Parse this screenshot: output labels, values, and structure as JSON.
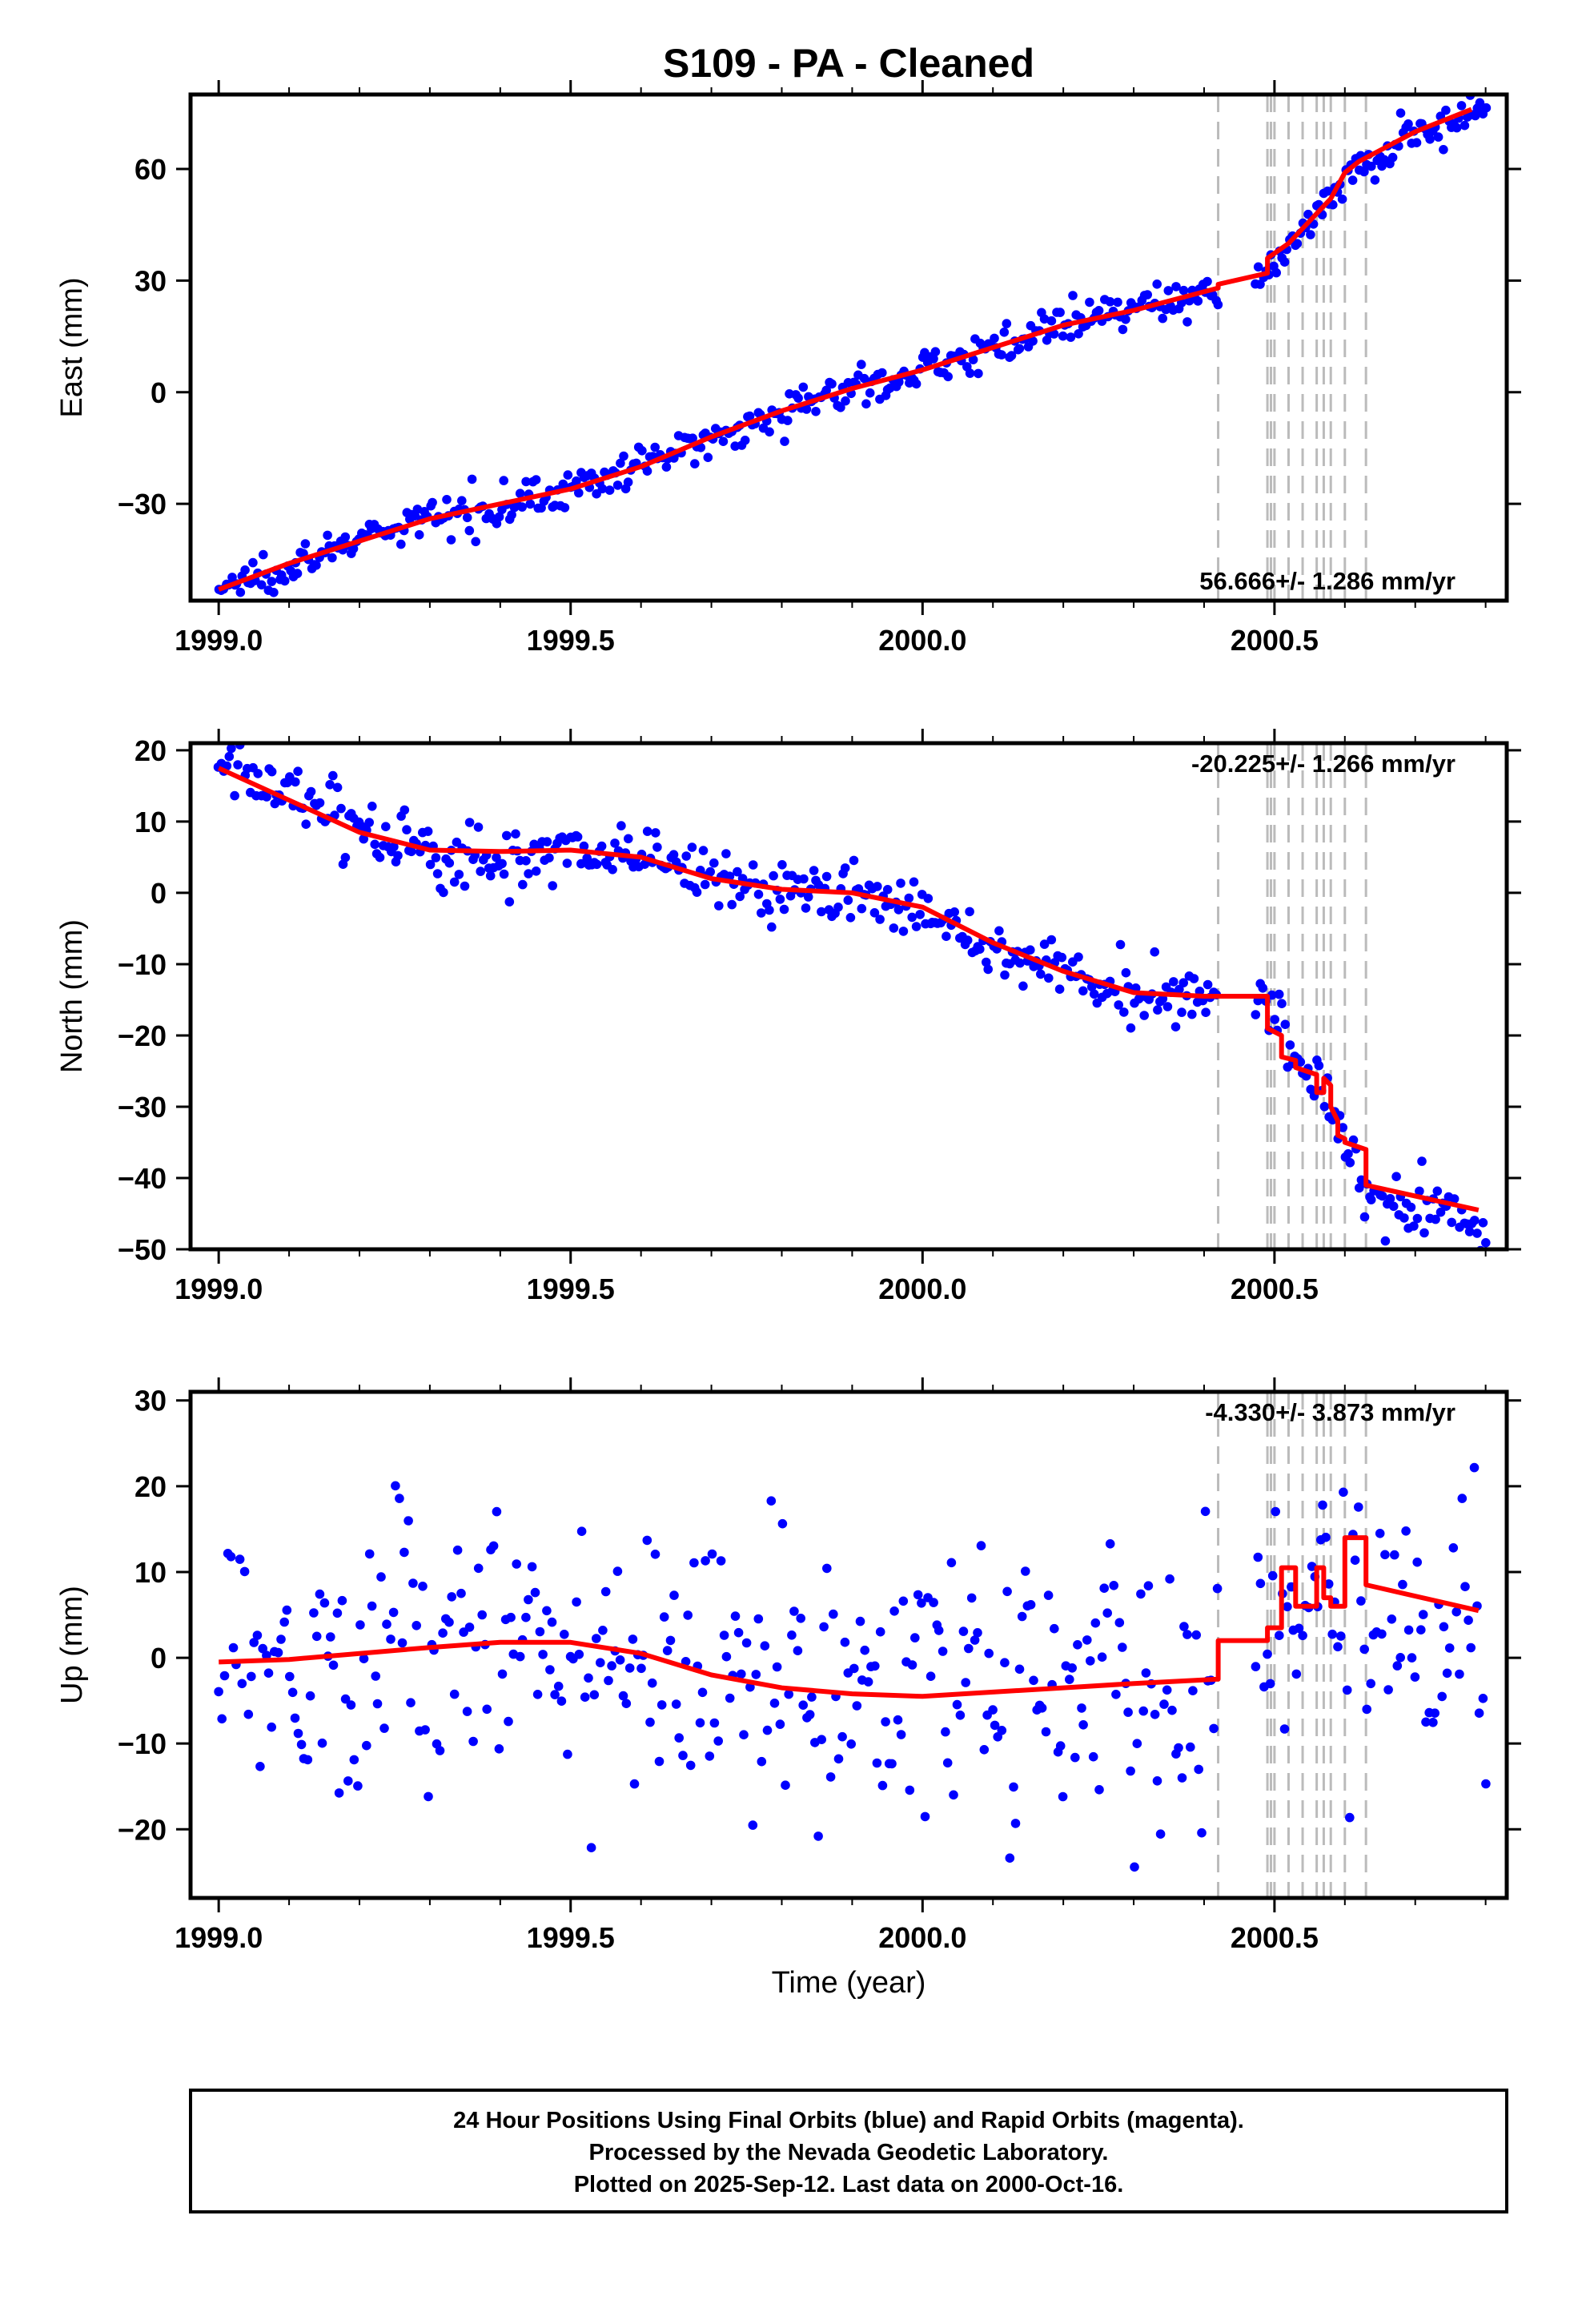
{
  "title": "S109  - PA - Cleaned",
  "x_axis_label": "Time (year)",
  "footer_lines": [
    "24 Hour Positions Using Final Orbits (blue) and Rapid Orbits (magenta).",
    "Processed by the Nevada Geodetic Laboratory.",
    "Plotted on 2025-Sep-12. Last data on 2000-Oct-16."
  ],
  "colors": {
    "final_orbits": "#0000ff",
    "model": "#ff0000",
    "offset_lines": "#bbbbbb"
  },
  "chart_data": [
    {
      "type": "scatter",
      "panel": "east",
      "ylabel": "East (mm)",
      "xlim": [
        1998.96,
        2000.83
      ],
      "ylim": [
        -56,
        80
      ],
      "xticks": [
        1999.0,
        1999.5,
        2000.0,
        2000.5
      ],
      "xtick_labels": [
        "1999.0",
        "1999.5",
        "2000.0",
        "2000.5"
      ],
      "yticks": [
        -30,
        0,
        30,
        60
      ],
      "ytick_labels": [
        "−30",
        "0",
        "30",
        "60"
      ],
      "rate_label": "56.666+/- 1.286 mm/yr",
      "rate_position": "bottom-right",
      "offset_epochs": [
        2000.42,
        2000.49,
        2000.495,
        2000.5,
        2000.52,
        2000.54,
        2000.56,
        2000.57,
        2000.58,
        2000.6,
        2000.63
      ],
      "model": {
        "x": [
          1999.0,
          1999.1,
          1999.2,
          1999.3,
          1999.4,
          1999.5,
          1999.6,
          1999.7,
          1999.8,
          1999.9,
          2000.0,
          2000.1,
          2000.2,
          2000.3,
          2000.42,
          2000.42,
          2000.49,
          2000.49,
          2000.52,
          2000.55,
          2000.58,
          2000.6,
          2000.62,
          2000.7,
          2000.78
        ],
        "y": [
          -53,
          -46,
          -40,
          -34,
          -30,
          -26,
          -20,
          -12,
          -5,
          1,
          6,
          12,
          18,
          22,
          28,
          29,
          32,
          36,
          40,
          46,
          52,
          59,
          62,
          70,
          76
        ]
      },
      "series": [
        {
          "name": "Final Orbits",
          "anchors_x": [
            1999.0,
            1999.1,
            1999.2,
            1999.3,
            1999.4,
            1999.5,
            1999.6,
            1999.7,
            1999.8,
            1999.9,
            2000.0,
            2000.1,
            2000.2,
            2000.3,
            2000.4,
            2000.5,
            2000.55,
            2000.6,
            2000.65,
            2000.7,
            2000.8
          ],
          "anchors_y": [
            -53,
            -46,
            -40,
            -34,
            -30,
            -26,
            -20,
            -12,
            -5,
            1,
            6,
            12,
            18,
            22,
            27,
            35,
            45,
            58,
            64,
            70,
            76
          ],
          "noise": 2.5,
          "x_range": [
            1999.0,
            2000.8
          ],
          "gaps": [
            [
              2000.42,
              2000.47
            ]
          ],
          "count": 480
        }
      ]
    },
    {
      "type": "scatter",
      "panel": "north",
      "ylabel": "North (mm)",
      "xlim": [
        1998.96,
        2000.83
      ],
      "ylim": [
        -50,
        21
      ],
      "xticks": [
        1999.0,
        1999.5,
        2000.0,
        2000.5
      ],
      "xtick_labels": [
        "1999.0",
        "1999.5",
        "2000.0",
        "2000.5"
      ],
      "yticks": [
        -50,
        -40,
        -30,
        -20,
        -10,
        0,
        10,
        20
      ],
      "ytick_labels": [
        "−50",
        "−40",
        "−30",
        "−20",
        "−10",
        "0",
        "10",
        "20"
      ],
      "rate_label": "-20.225+/- 1.266 mm/yr",
      "rate_position": "top-right",
      "offset_epochs": [
        2000.42,
        2000.49,
        2000.495,
        2000.5,
        2000.52,
        2000.54,
        2000.56,
        2000.57,
        2000.58,
        2000.6,
        2000.63
      ],
      "model": {
        "x": [
          1999.0,
          1999.1,
          1999.2,
          1999.3,
          1999.4,
          1999.5,
          1999.6,
          1999.7,
          1999.8,
          1999.9,
          2000.0,
          2000.1,
          2000.2,
          2000.3,
          2000.4,
          2000.49,
          2000.49,
          2000.51,
          2000.51,
          2000.53,
          2000.53,
          2000.56,
          2000.56,
          2000.57,
          2000.57,
          2000.58,
          2000.58,
          2000.59,
          2000.59,
          2000.6,
          2000.6,
          2000.63,
          2000.63,
          2000.79
        ],
        "y": [
          17.5,
          13,
          8.5,
          6,
          5.8,
          6,
          5,
          2,
          0.5,
          0,
          -2,
          -7,
          -11,
          -14,
          -14.5,
          -14.5,
          -19,
          -20,
          -23,
          -23.5,
          -24.5,
          -25.5,
          -28,
          -28,
          -26,
          -27,
          -30,
          -32,
          -34,
          -34.5,
          -35,
          -36,
          -41,
          -44.5
        ]
      },
      "series": [
        {
          "name": "Final Orbits",
          "anchors_x": [
            1999.0,
            1999.1,
            1999.2,
            1999.3,
            1999.4,
            1999.5,
            1999.6,
            1999.7,
            1999.8,
            1999.9,
            2000.0,
            2000.1,
            2000.2,
            2000.3,
            2000.4,
            2000.49,
            2000.52,
            2000.56,
            2000.6,
            2000.63,
            2000.7,
            2000.8
          ],
          "anchors_y": [
            18,
            14,
            10,
            5,
            5,
            5.5,
            5.5,
            2,
            0,
            -0.5,
            -2.5,
            -8,
            -11,
            -14,
            -13,
            -14,
            -22,
            -26,
            -35,
            -41,
            -43,
            -47
          ],
          "noise": 2.3,
          "x_range": [
            1999.0,
            2000.8
          ],
          "gaps": [
            [
              2000.42,
              2000.47
            ]
          ],
          "count": 480
        }
      ]
    },
    {
      "type": "scatter",
      "panel": "up",
      "ylabel": "Up (mm)",
      "xlim": [
        1998.96,
        2000.83
      ],
      "ylim": [
        -28,
        31
      ],
      "xticks": [
        1999.0,
        1999.5,
        2000.0,
        2000.5
      ],
      "xtick_labels": [
        "1999.0",
        "1999.5",
        "2000.0",
        "2000.5"
      ],
      "yticks": [
        -20,
        -10,
        0,
        10,
        20,
        30
      ],
      "ytick_labels": [
        "−20",
        "−10",
        "0",
        "10",
        "20",
        "30"
      ],
      "rate_label": "-4.330+/- 3.873 mm/yr",
      "rate_position": "top-right",
      "offset_epochs": [
        2000.42,
        2000.49,
        2000.495,
        2000.5,
        2000.52,
        2000.54,
        2000.56,
        2000.57,
        2000.58,
        2000.6,
        2000.63
      ],
      "model": {
        "x": [
          1999.0,
          1999.1,
          1999.2,
          1999.3,
          1999.4,
          1999.5,
          1999.6,
          1999.7,
          1999.8,
          1999.9,
          2000.0,
          2000.1,
          2000.2,
          2000.3,
          2000.42,
          2000.42,
          2000.49,
          2000.49,
          2000.51,
          2000.51,
          2000.53,
          2000.53,
          2000.56,
          2000.56,
          2000.57,
          2000.57,
          2000.58,
          2000.58,
          2000.6,
          2000.6,
          2000.63,
          2000.63,
          2000.79
        ],
        "y": [
          -0.5,
          -0.2,
          0.5,
          1.2,
          1.8,
          1.8,
          0.5,
          -2,
          -3.5,
          -4.2,
          -4.5,
          -4,
          -3.5,
          -3,
          -2.5,
          2,
          2,
          3.5,
          3.5,
          10.5,
          10.5,
          6,
          6,
          10.5,
          10.5,
          7,
          7,
          6,
          6,
          14,
          14,
          8.5,
          5.5
        ]
      },
      "series": [
        {
          "name": "Final Orbits",
          "anchors_x": [
            1999.0,
            1999.2,
            1999.4,
            1999.5,
            1999.6,
            1999.8,
            2000.0,
            2000.2,
            2000.4,
            2000.5,
            2000.6,
            2000.7,
            2000.8
          ],
          "anchors_y": [
            1,
            0,
            3,
            1,
            0,
            -3,
            -4,
            -3,
            -2,
            3,
            8,
            6,
            4
          ],
          "noise": 8,
          "x_range": [
            1999.0,
            2000.8
          ],
          "gaps": [
            [
              2000.42,
              2000.47
            ]
          ],
          "count": 430
        }
      ]
    }
  ]
}
